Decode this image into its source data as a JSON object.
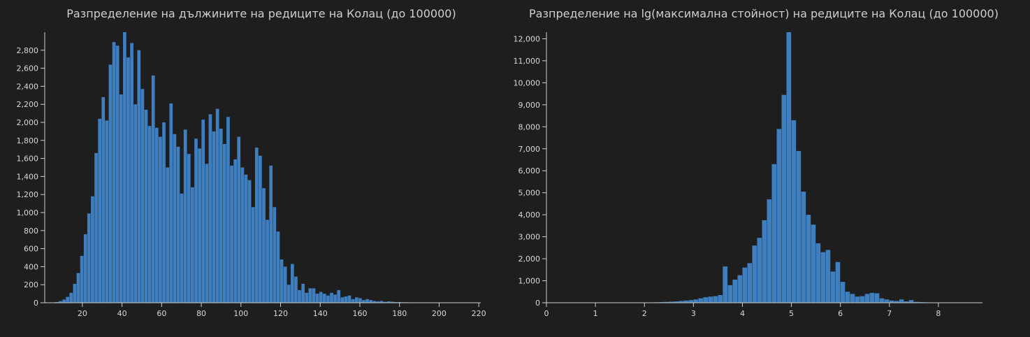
{
  "colors": {
    "background": "#1e1e1e",
    "bar": "#3f7fbf",
    "bar_edge": "#2e5f90",
    "text": "#d8d8d8"
  },
  "chart_data": [
    {
      "type": "bar",
      "title": "Разпределение на дължините на редиците на Колац (до 100000)",
      "xlabel": "",
      "ylabel": "",
      "xlim": [
        1,
        221
      ],
      "ylim": [
        0,
        3000
      ],
      "bin_width": 1.8,
      "x_ticks": [
        20,
        40,
        60,
        80,
        100,
        120,
        140,
        160,
        180,
        200,
        220
      ],
      "y_ticks": [
        0,
        200,
        400,
        600,
        800,
        1000,
        1200,
        1400,
        1600,
        1800,
        2000,
        2200,
        2400,
        2600,
        2800
      ],
      "grid": false,
      "bins_start": [
        4.5,
        6.3,
        8.1,
        9.9,
        11.7,
        13.5,
        15.3,
        17.1,
        18.9,
        20.7,
        22.5,
        24.3,
        26.1,
        27.9,
        29.7,
        31.5,
        33.3,
        35.1,
        36.9,
        38.7,
        40.5,
        42.3,
        44.1,
        45.9,
        47.7,
        49.5,
        51.3,
        53.1,
        54.9,
        56.7,
        58.5,
        60.3,
        62.1,
        63.9,
        65.7,
        67.5,
        69.3,
        71.1,
        72.9,
        74.7,
        76.5,
        78.3,
        80.1,
        81.9,
        83.7,
        85.5,
        87.3,
        89.1,
        90.9,
        92.7,
        94.5,
        96.3,
        98.1,
        99.9,
        101.7,
        103.5,
        105.3,
        107.1,
        108.9,
        110.7,
        112.5,
        114.3,
        116.1,
        117.9,
        119.7,
        121.5,
        123.3,
        125.1,
        126.9,
        128.7,
        130.5,
        132.3,
        134.1,
        135.9,
        137.7,
        139.5,
        141.3,
        143.1,
        144.9,
        146.7,
        148.5,
        150.3,
        152.1,
        153.9,
        155.7,
        157.5,
        159.3,
        161.1,
        162.9,
        164.7,
        166.5,
        168.3,
        170.1,
        171.9,
        173.7,
        175.5,
        177.3,
        179.1,
        180.9,
        182.7,
        184.5,
        186.3,
        188.1,
        189.9,
        191.7,
        193.5,
        195.3,
        197.1,
        198.9,
        200.7,
        202.5,
        204.3,
        206.1,
        207.9,
        209.7,
        211.5
      ],
      "values": [
        3,
        8,
        18,
        35,
        65,
        110,
        210,
        330,
        520,
        760,
        990,
        1180,
        1660,
        2040,
        2280,
        2020,
        2640,
        2890,
        2850,
        2310,
        3000,
        2720,
        2880,
        2200,
        2800,
        2370,
        2140,
        1960,
        2520,
        1940,
        1840,
        2000,
        1500,
        2210,
        1870,
        1730,
        1210,
        1920,
        1650,
        1280,
        1820,
        1710,
        2030,
        1540,
        2090,
        1900,
        2150,
        1930,
        1760,
        2060,
        1520,
        1590,
        1840,
        1500,
        1420,
        1360,
        1060,
        1720,
        1630,
        1270,
        920,
        1520,
        1060,
        790,
        480,
        400,
        200,
        430,
        290,
        140,
        210,
        110,
        160,
        160,
        100,
        120,
        100,
        80,
        110,
        90,
        140,
        60,
        70,
        80,
        40,
        60,
        50,
        30,
        40,
        30,
        20,
        15,
        20,
        10,
        15,
        12,
        8,
        8,
        6,
        5,
        4,
        4,
        3,
        3,
        2,
        2,
        2,
        1,
        1,
        1,
        1,
        1,
        1,
        1,
        1,
        1
      ]
    },
    {
      "type": "bar",
      "title": "Разпределение на lg(максимална стойност) на редиците на Колац (до 100000)",
      "xlabel": "",
      "ylabel": "",
      "xlim": [
        0,
        8.9
      ],
      "ylim": [
        0,
        12300
      ],
      "bin_width": 0.1,
      "x_ticks": [
        0,
        1,
        2,
        3,
        4,
        5,
        6,
        7,
        8
      ],
      "y_ticks": [
        0,
        1000,
        2000,
        3000,
        4000,
        5000,
        6000,
        7000,
        8000,
        9000,
        10000,
        11000,
        12000
      ],
      "grid": false,
      "bins_start": [
        2.0,
        2.1,
        2.2,
        2.3,
        2.4,
        2.5,
        2.6,
        2.7,
        2.8,
        2.9,
        3.0,
        3.1,
        3.2,
        3.3,
        3.4,
        3.5,
        3.6,
        3.7,
        3.8,
        3.9,
        4.0,
        4.1,
        4.2,
        4.3,
        4.4,
        4.5,
        4.6,
        4.7,
        4.8,
        4.9,
        5.0,
        5.1,
        5.2,
        5.3,
        5.4,
        5.5,
        5.6,
        5.7,
        5.8,
        5.9,
        6.0,
        6.1,
        6.2,
        6.3,
        6.4,
        6.5,
        6.6,
        6.7,
        6.8,
        6.9,
        7.0,
        7.1,
        7.2,
        7.3,
        7.4,
        7.5,
        7.6,
        7.7
      ],
      "values": [
        10,
        15,
        20,
        30,
        40,
        50,
        60,
        80,
        100,
        120,
        150,
        200,
        250,
        280,
        300,
        350,
        1650,
        800,
        1050,
        1250,
        1600,
        1800,
        2600,
        2950,
        3750,
        4700,
        6300,
        7900,
        9450,
        12300,
        8300,
        6900,
        5050,
        4000,
        3550,
        2700,
        2300,
        2400,
        1420,
        1850,
        950,
        500,
        400,
        280,
        300,
        400,
        450,
        430,
        200,
        150,
        100,
        80,
        150,
        60,
        120,
        40,
        30,
        20
      ]
    }
  ]
}
